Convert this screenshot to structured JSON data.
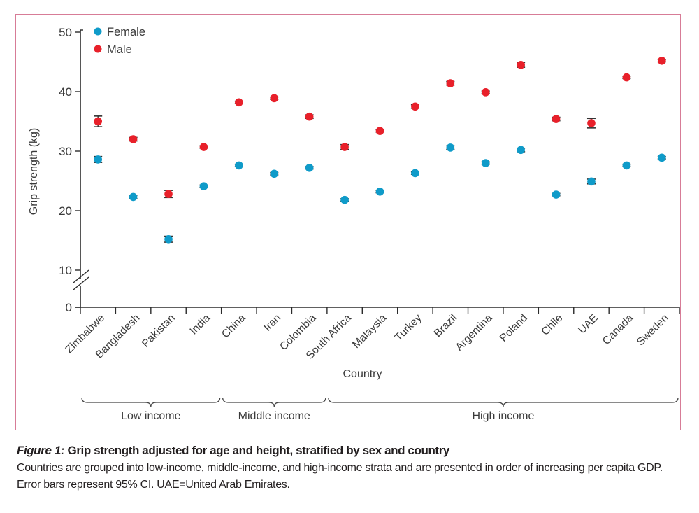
{
  "chart_data": {
    "type": "scatter",
    "title": "",
    "xlabel": "Country",
    "ylabel": "Grip strength (kg)",
    "ylim": [
      0,
      50
    ],
    "y_axis_break": [
      0,
      10
    ],
    "yticks": [
      0,
      10,
      20,
      30,
      40,
      50
    ],
    "grid": false,
    "legend_position": "top-left",
    "categories": [
      "Zimbabwe",
      "Bangladesh",
      "Pakistan",
      "India",
      "China",
      "Iran",
      "Colombia",
      "South Africa",
      "Malaysia",
      "Turkey",
      "Brazil",
      "Argentina",
      "Poland",
      "Chile",
      "UAE",
      "Canada",
      "Sweden"
    ],
    "series": [
      {
        "name": "Female",
        "color": "#0f9bc9",
        "values": [
          28.6,
          22.3,
          15.2,
          24.1,
          27.6,
          26.2,
          27.2,
          21.8,
          23.2,
          26.3,
          30.6,
          28.0,
          30.2,
          22.7,
          24.9,
          27.6,
          28.9
        ],
        "ci_low": [
          28.1,
          22.0,
          14.7,
          23.9,
          27.4,
          26.0,
          27.0,
          21.6,
          23.0,
          26.1,
          30.3,
          27.8,
          29.9,
          22.5,
          24.5,
          27.4,
          28.7
        ],
        "ci_high": [
          29.1,
          22.6,
          15.7,
          24.3,
          27.8,
          26.4,
          27.4,
          22.0,
          23.4,
          26.5,
          30.9,
          28.2,
          30.5,
          22.9,
          25.3,
          27.8,
          29.1
        ]
      },
      {
        "name": "Male",
        "color": "#e8202a",
        "values": [
          35.0,
          32.0,
          22.8,
          30.7,
          38.2,
          38.9,
          35.8,
          30.7,
          33.4,
          37.5,
          41.4,
          39.9,
          44.5,
          35.4,
          34.7,
          42.4,
          45.2
        ],
        "ci_low": [
          34.1,
          31.7,
          22.2,
          30.5,
          38.0,
          38.7,
          35.5,
          30.3,
          33.2,
          37.2,
          41.1,
          39.7,
          44.1,
          35.1,
          33.9,
          42.2,
          45.0
        ],
        "ci_high": [
          35.9,
          32.3,
          23.4,
          30.9,
          38.4,
          39.1,
          36.1,
          31.1,
          33.6,
          37.8,
          41.7,
          40.1,
          44.9,
          35.7,
          35.5,
          42.6,
          45.4
        ]
      }
    ],
    "groups": [
      {
        "label": "Low income",
        "from": 0,
        "to": 3
      },
      {
        "label": "Middle income",
        "from": 4,
        "to": 6
      },
      {
        "label": "High income",
        "from": 7,
        "to": 16
      }
    ]
  },
  "caption": {
    "figure_label": "Figure 1:",
    "title": " Grip strength adjusted for age and height, stratified by sex and country",
    "body": "Countries are grouped into low-income, middle-income, and high-income strata and are presented in order of increasing per capita GDP. Error bars represent 95% CI. UAE=United Arab Emirates."
  }
}
